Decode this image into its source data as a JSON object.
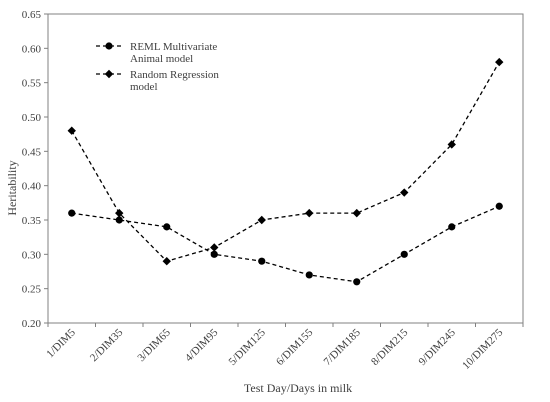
{
  "chart_data": {
    "type": "line",
    "categories": [
      "1/DIM5",
      "2/DIM35",
      "3/DIM65",
      "4/DIM95",
      "5/DIM125",
      "6/DIM155",
      "7/DIM185",
      "8/DIM215",
      "9/DIM245",
      "10/DIM275"
    ],
    "series": [
      {
        "name": "REML Multivariate Animal model",
        "name_lines": [
          "REML Multivariate",
          "Animal model"
        ],
        "marker": "circle",
        "line_style": "dashed",
        "values": [
          0.36,
          0.35,
          0.34,
          0.3,
          0.29,
          0.27,
          0.26,
          0.3,
          0.34,
          0.37
        ]
      },
      {
        "name": "Random Regression model",
        "name_lines": [
          "Random Regression",
          "model"
        ],
        "marker": "diamond",
        "line_style": "dashed",
        "values": [
          0.48,
          0.36,
          0.29,
          0.31,
          0.35,
          0.36,
          0.36,
          0.39,
          0.46,
          0.58
        ]
      }
    ],
    "yticks": [
      "0.20",
      "0.25",
      "0.30",
      "0.35",
      "0.40",
      "0.45",
      "0.50",
      "0.55",
      "0.60",
      "0.65"
    ],
    "ylim": [
      0.2,
      0.65
    ],
    "xlabel": "Test Day/Days  in milk",
    "ylabel": "Heritability",
    "grid": false,
    "legend_position": "top-left",
    "colors": {
      "line": "#000000",
      "axis": "#808080",
      "text": "#404040"
    }
  }
}
